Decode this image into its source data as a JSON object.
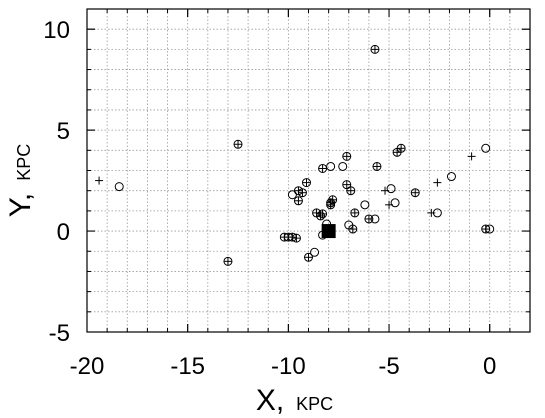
{
  "chart_data": {
    "type": "scatter",
    "title": "",
    "xlabel": "X,",
    "xlabel_unit": "KPC",
    "ylabel": "Y,",
    "ylabel_unit": "KPC",
    "xlim": [
      -20,
      2
    ],
    "ylim": [
      -5,
      11
    ],
    "xticks": [
      -20,
      -15,
      -10,
      -5,
      0
    ],
    "xtick_labels": [
      "-20",
      "-15",
      "-10",
      "-5",
      "0"
    ],
    "yticks": [
      -5,
      0,
      5,
      10
    ],
    "ytick_labels": [
      "-5",
      "0",
      "5",
      "10"
    ],
    "grid": true,
    "grid_x": [
      -19,
      -18,
      -17,
      -16,
      -15,
      -14,
      -13,
      -12,
      -11,
      -10,
      -9,
      -8,
      -7,
      -6,
      -5,
      -4,
      -3,
      -2,
      -1,
      0,
      1
    ],
    "grid_y": [
      -4,
      -3,
      -2,
      -1,
      0,
      1,
      2,
      3,
      4,
      5,
      6,
      7,
      8,
      9,
      10
    ],
    "sun": {
      "x": -8.0,
      "y": 0.0,
      "marker": "filled-square"
    },
    "points": [
      {
        "x": -19.4,
        "y": 2.5,
        "marker": "plus"
      },
      {
        "x": -18.4,
        "y": 2.2,
        "marker": "circle"
      },
      {
        "x": -12.5,
        "y": 4.3,
        "marker": "circle-plus"
      },
      {
        "x": -13.0,
        "y": -1.5,
        "marker": "circle-plus"
      },
      {
        "x": -10.2,
        "y": -0.3,
        "marker": "circle-plus"
      },
      {
        "x": -10.0,
        "y": -0.3,
        "marker": "circle-plus"
      },
      {
        "x": -9.8,
        "y": -0.3,
        "marker": "circle-plus"
      },
      {
        "x": -9.6,
        "y": -0.35,
        "marker": "circle-plus"
      },
      {
        "x": -9.0,
        "y": -1.3,
        "marker": "circle-plus"
      },
      {
        "x": -8.7,
        "y": -1.05,
        "marker": "circle"
      },
      {
        "x": -9.8,
        "y": 1.8,
        "marker": "circle"
      },
      {
        "x": -9.5,
        "y": 2.0,
        "marker": "circle-plus"
      },
      {
        "x": -9.3,
        "y": 1.9,
        "marker": "circle-plus"
      },
      {
        "x": -9.5,
        "y": 1.5,
        "marker": "circle-plus"
      },
      {
        "x": -9.1,
        "y": 2.4,
        "marker": "circle-plus"
      },
      {
        "x": -8.6,
        "y": 0.9,
        "marker": "circle-plus"
      },
      {
        "x": -8.4,
        "y": 0.75,
        "marker": "circle-plus"
      },
      {
        "x": -8.3,
        "y": 0.85,
        "marker": "circle-plus"
      },
      {
        "x": -8.1,
        "y": 0.35,
        "marker": "circle"
      },
      {
        "x": -8.3,
        "y": -0.2,
        "marker": "circle"
      },
      {
        "x": -7.9,
        "y": 1.3,
        "marker": "circle-plus"
      },
      {
        "x": -7.8,
        "y": 1.55,
        "marker": "circle-plus"
      },
      {
        "x": -7.9,
        "y": 1.4,
        "marker": "circle-plus"
      },
      {
        "x": -8.3,
        "y": 3.1,
        "marker": "circle-plus"
      },
      {
        "x": -7.9,
        "y": 3.2,
        "marker": "circle"
      },
      {
        "x": -7.3,
        "y": 3.2,
        "marker": "circle"
      },
      {
        "x": -7.1,
        "y": 3.7,
        "marker": "circle-plus"
      },
      {
        "x": -7.1,
        "y": 2.3,
        "marker": "circle-plus"
      },
      {
        "x": -6.9,
        "y": 2.0,
        "marker": "circle-plus"
      },
      {
        "x": -7.0,
        "y": 0.3,
        "marker": "circle"
      },
      {
        "x": -6.8,
        "y": 0.1,
        "marker": "circle-plus"
      },
      {
        "x": -6.7,
        "y": 0.9,
        "marker": "circle-plus"
      },
      {
        "x": -6.2,
        "y": 1.3,
        "marker": "circle"
      },
      {
        "x": -6.0,
        "y": 0.6,
        "marker": "circle-plus"
      },
      {
        "x": -5.7,
        "y": 0.6,
        "marker": "circle"
      },
      {
        "x": -5.6,
        "y": 3.2,
        "marker": "circle-plus"
      },
      {
        "x": -5.7,
        "y": 9.0,
        "marker": "circle-plus"
      },
      {
        "x": -5.0,
        "y": 1.3,
        "marker": "plus"
      },
      {
        "x": -5.2,
        "y": 2.0,
        "marker": "plus"
      },
      {
        "x": -4.9,
        "y": 2.1,
        "marker": "circle"
      },
      {
        "x": -4.7,
        "y": 1.4,
        "marker": "circle"
      },
      {
        "x": -4.6,
        "y": 3.9,
        "marker": "circle-plus"
      },
      {
        "x": -4.4,
        "y": 4.1,
        "marker": "circle-plus"
      },
      {
        "x": -3.7,
        "y": 1.9,
        "marker": "circle-plus"
      },
      {
        "x": -2.9,
        "y": 0.9,
        "marker": "plus"
      },
      {
        "x": -2.6,
        "y": 0.9,
        "marker": "circle"
      },
      {
        "x": -2.6,
        "y": 2.4,
        "marker": "plus"
      },
      {
        "x": -1.9,
        "y": 2.7,
        "marker": "circle"
      },
      {
        "x": -0.9,
        "y": 3.7,
        "marker": "plus"
      },
      {
        "x": -0.2,
        "y": 4.1,
        "marker": "circle"
      },
      {
        "x": -0.2,
        "y": 0.1,
        "marker": "circle-plus"
      },
      {
        "x": 0.0,
        "y": 0.1,
        "marker": "circle"
      }
    ]
  }
}
